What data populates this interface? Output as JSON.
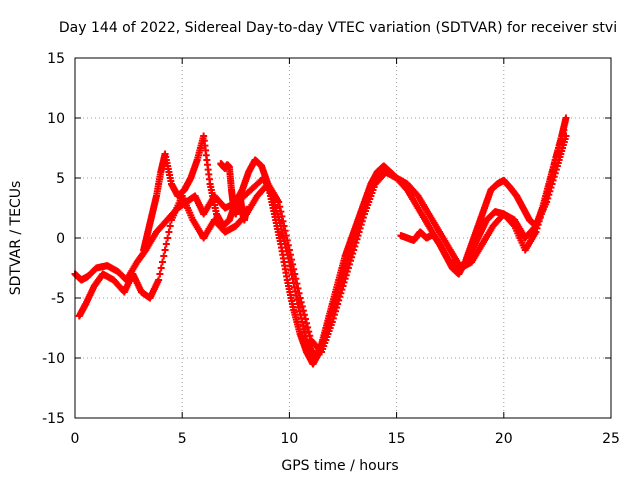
{
  "chart_data": {
    "type": "scatter",
    "title": "Day 144 of 2022, Sidereal Day-to-day VTEC variation (SDTVAR) for receiver stvi",
    "xlabel": "GPS time / hours",
    "ylabel": "SDTVAR / TECUs",
    "xlim": [
      0,
      25
    ],
    "ylim": [
      -15,
      15
    ],
    "x_ticks": [
      "0",
      "5",
      "10",
      "15",
      "20",
      "25"
    ],
    "y_ticks": [
      "-15",
      "-10",
      "-5",
      "0",
      "5",
      "10",
      "15"
    ],
    "grid": true,
    "marker": "plus",
    "series_color": "#ff0000",
    "series": [
      {
        "x": [
          0.0,
          0.3,
          0.6,
          1.0,
          1.5,
          2.0,
          2.4,
          2.9,
          3.3,
          3.8,
          4.3,
          4.8,
          5.2,
          5.6,
          6.0,
          6.5,
          7.0,
          7.6,
          8.2,
          8.8,
          9.2,
          9.6,
          10.0,
          10.4,
          10.8,
          11.2,
          11.6,
          12.0,
          12.5,
          13.0,
          13.5,
          14.0,
          14.5,
          15.0,
          15.5,
          16.0,
          16.5,
          17.0,
          17.5,
          18.0,
          18.4,
          18.8,
          19.2,
          19.6,
          20.0,
          20.5,
          21.0,
          21.5,
          22.0,
          22.4,
          22.8
        ],
        "y": [
          -3.0,
          -3.5,
          -3.2,
          -2.5,
          -2.3,
          -2.8,
          -3.5,
          -2.0,
          -1.0,
          0.5,
          1.5,
          2.5,
          3.0,
          3.5,
          2.0,
          3.5,
          2.5,
          3.0,
          4.0,
          5.0,
          3.5,
          1.0,
          -2.0,
          -5.5,
          -8.5,
          -10.0,
          -8.5,
          -6.0,
          -3.0,
          0.0,
          3.0,
          5.0,
          5.5,
          5.0,
          4.0,
          2.5,
          1.0,
          -0.5,
          -2.0,
          -2.5,
          -1.5,
          0.0,
          1.5,
          2.2,
          2.0,
          1.0,
          -1.0,
          0.5,
          3.5,
          6.5,
          9.0
        ]
      },
      {
        "x": [
          0.2,
          0.5,
          0.9,
          1.3,
          1.8,
          2.3,
          2.7,
          3.1,
          3.5,
          3.9,
          4.5,
          5.0,
          5.5,
          6.0,
          6.5,
          7.0,
          7.5,
          8.0,
          8.5,
          9.0,
          9.5,
          10.0,
          10.5,
          11.0,
          11.5,
          12.0,
          12.5,
          13.0,
          13.5,
          14.0,
          14.5,
          15.0,
          15.5,
          16.0,
          16.5,
          17.0,
          17.5,
          18.0,
          18.5,
          19.0,
          19.5,
          20.0,
          20.5,
          21.0,
          21.5,
          22.0,
          22.5,
          22.9
        ],
        "y": [
          -6.5,
          -5.5,
          -4.0,
          -3.0,
          -3.5,
          -4.5,
          -3.0,
          -4.5,
          -5.0,
          -3.5,
          1.5,
          3.5,
          1.5,
          0.0,
          1.5,
          0.5,
          1.0,
          2.0,
          3.5,
          4.5,
          3.0,
          -1.0,
          -5.0,
          -8.5,
          -9.5,
          -7.0,
          -4.0,
          -1.0,
          2.0,
          4.5,
          5.5,
          5.0,
          4.5,
          3.5,
          2.0,
          0.5,
          -1.0,
          -2.5,
          -2.0,
          -0.5,
          1.0,
          2.0,
          1.5,
          0.0,
          1.0,
          3.0,
          6.0,
          8.5
        ]
      },
      {
        "x": [
          3.2,
          3.4,
          3.6,
          3.8,
          4.0,
          4.2,
          4.5,
          4.8,
          5.1,
          5.4,
          5.7,
          6.0,
          6.3,
          6.6,
          6.9,
          7.2,
          7.5,
          7.8,
          8.1,
          8.4,
          8.7,
          9.0,
          9.3,
          9.6,
          9.9,
          10.2,
          10.5,
          10.8,
          11.1,
          11.4,
          11.7,
          12.0,
          12.3,
          12.6,
          12.9,
          13.2,
          13.5,
          13.8,
          14.1,
          14.4,
          14.7,
          15.0
        ],
        "y": [
          -1.0,
          0.5,
          2.0,
          3.5,
          5.5,
          7.0,
          4.5,
          3.5,
          4.0,
          5.0,
          6.5,
          8.5,
          4.5,
          2.0,
          1.0,
          1.5,
          3.0,
          4.0,
          5.5,
          6.5,
          6.0,
          4.5,
          2.0,
          -0.5,
          -3.5,
          -6.0,
          -8.0,
          -9.5,
          -10.5,
          -9.5,
          -7.5,
          -5.5,
          -3.5,
          -1.5,
          0.0,
          1.5,
          3.0,
          4.5,
          5.5,
          6.0,
          5.5,
          5.0
        ]
      },
      {
        "x": [
          15.2,
          15.5,
          15.8,
          16.1,
          16.4,
          16.7,
          17.0,
          17.3,
          17.6,
          17.9,
          18.2,
          18.5,
          18.8,
          19.1,
          19.4,
          19.7,
          20.0,
          20.3,
          20.6,
          20.9,
          21.2,
          21.5,
          21.8,
          22.1,
          22.4,
          22.7,
          22.9
        ],
        "y": [
          0.2,
          0.0,
          -0.2,
          0.5,
          0.0,
          0.3,
          -0.5,
          -1.5,
          -2.5,
          -3.0,
          -2.0,
          -0.5,
          1.0,
          2.5,
          4.0,
          4.5,
          4.8,
          4.2,
          3.5,
          2.5,
          1.5,
          1.0,
          2.5,
          4.5,
          6.5,
          8.5,
          10.0
        ]
      },
      {
        "x": [
          6.8,
          6.9,
          7.0,
          7.1,
          7.2,
          7.3,
          7.4,
          7.5,
          7.6,
          7.7,
          7.8,
          7.9,
          8.0
        ],
        "y": [
          6.2,
          6.0,
          5.8,
          6.1,
          5.9,
          4.0,
          2.5,
          2.0,
          2.8,
          3.5,
          2.2,
          1.5,
          2.4
        ]
      }
    ]
  }
}
